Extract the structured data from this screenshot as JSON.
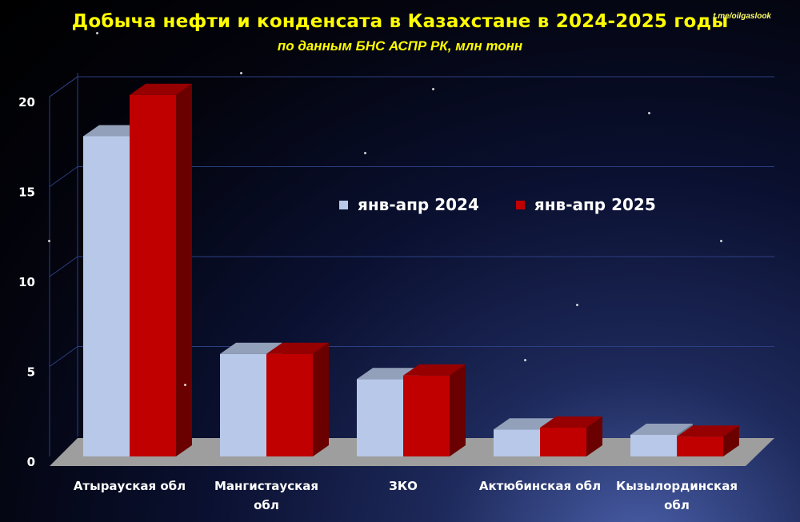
{
  "title": "Добыча нефти и конденсата в Казахстане в 2024-2025 годы",
  "subtitle": "по данным БНС АСПР РК, млн тонн",
  "watermark": "t.me/oilgaslook",
  "colors": {
    "series_2024": "#b8c8e8",
    "series_2025": "#c00000",
    "title": "#ffff00"
  },
  "chart_data": {
    "type": "bar",
    "categories": [
      "Атырауская обл",
      "Мангистауская обл",
      "ЗКО",
      "Актюбинская обл",
      "Кызылординская обл"
    ],
    "series": [
      {
        "name": "янв-апр 2024",
        "values": [
          17.8,
          5.7,
          4.3,
          1.5,
          1.2
        ]
      },
      {
        "name": "янв-апр 2025",
        "values": [
          20.1,
          5.7,
          4.5,
          1.6,
          1.1
        ]
      }
    ],
    "y_ticks": [
      "0",
      "5",
      "10",
      "15",
      "20"
    ],
    "ylim": [
      0,
      20
    ],
    "grid": true,
    "legend_position": "center"
  }
}
